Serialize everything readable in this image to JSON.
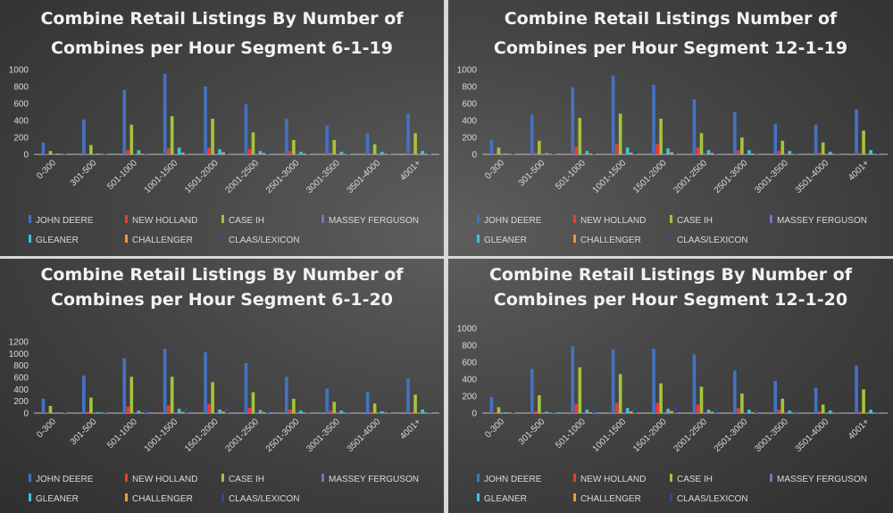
{
  "colors": {
    "JOHN DEERE": "#4472c4",
    "NEW HOLLAND": "#e83b3b",
    "CASE IH": "#a4c43a",
    "MASSEY FERGUSON": "#8e64c8",
    "GLEANER": "#3bc5db",
    "CHALLENGER": "#f39a2c",
    "CLAAS/LEXICON": "#2c4d80"
  },
  "chart_data": [
    {
      "type": "bar",
      "title_lines": [
        "Combine Retail Listings By Number of",
        "Combines per Hour Segment 6-1-19"
      ],
      "categories": [
        "0-300",
        "301-500",
        "501-1000",
        "1001-1500",
        "1501-2000",
        "2001-2500",
        "2501-3000",
        "3001-3500",
        "3501-4000",
        "4001+"
      ],
      "ylim": [
        0,
        1000
      ],
      "yticks": [
        0,
        200,
        400,
        600,
        800,
        1000
      ],
      "legend_position": "bottom",
      "series": [
        {
          "name": "JOHN DEERE",
          "values": [
            140,
            410,
            760,
            950,
            800,
            590,
            420,
            340,
            250,
            480
          ]
        },
        {
          "name": "NEW HOLLAND",
          "values": [
            5,
            10,
            50,
            70,
            80,
            65,
            40,
            20,
            10,
            10
          ]
        },
        {
          "name": "CASE IH",
          "values": [
            40,
            110,
            350,
            450,
            420,
            260,
            170,
            170,
            120,
            250
          ]
        },
        {
          "name": "MASSEY FERGUSON",
          "values": [
            2,
            3,
            5,
            10,
            10,
            8,
            5,
            4,
            3,
            2
          ]
        },
        {
          "name": "GLEANER",
          "values": [
            10,
            10,
            50,
            80,
            60,
            40,
            30,
            30,
            30,
            40
          ]
        },
        {
          "name": "CHALLENGER",
          "values": [
            2,
            3,
            8,
            20,
            25,
            15,
            10,
            5,
            3,
            3
          ]
        },
        {
          "name": "CLAAS/LEXICON",
          "values": [
            5,
            10,
            40,
            40,
            50,
            40,
            30,
            20,
            15,
            15
          ]
        }
      ]
    },
    {
      "type": "bar",
      "title_lines": [
        "Combine Retail Listings Number of",
        "Combines   per Hour Segment 12-1-19"
      ],
      "categories": [
        "0-300",
        "301-500",
        "501-1000",
        "1001-1500",
        "1501-2000",
        "2001-2500",
        "2501-3000",
        "3001-3500",
        "3501-4000",
        "4001+"
      ],
      "ylim": [
        0,
        1000
      ],
      "yticks": [
        0,
        200,
        400,
        600,
        800,
        1000
      ],
      "legend_position": "bottom",
      "series": [
        {
          "name": "JOHN DEERE",
          "values": [
            170,
            470,
            790,
            930,
            820,
            650,
            500,
            360,
            350,
            530
          ]
        },
        {
          "name": "NEW HOLLAND",
          "values": [
            10,
            20,
            90,
            120,
            120,
            80,
            50,
            40,
            20,
            15
          ]
        },
        {
          "name": "CASE IH",
          "values": [
            80,
            160,
            430,
            480,
            420,
            250,
            200,
            160,
            140,
            280
          ]
        },
        {
          "name": "MASSEY FERGUSON",
          "values": [
            2,
            3,
            5,
            10,
            10,
            8,
            5,
            4,
            3,
            2
          ]
        },
        {
          "name": "GLEANER",
          "values": [
            10,
            15,
            40,
            80,
            70,
            50,
            50,
            40,
            30,
            50
          ]
        },
        {
          "name": "CHALLENGER",
          "values": [
            2,
            3,
            10,
            20,
            25,
            15,
            10,
            5,
            3,
            3
          ]
        },
        {
          "name": "CLAAS/LEXICON",
          "values": [
            5,
            10,
            30,
            50,
            60,
            40,
            30,
            20,
            15,
            15
          ]
        }
      ]
    },
    {
      "type": "bar",
      "title_lines": [
        "Combine Retail Listings By Number of",
        "Combines per Hour Segment 6-1-20"
      ],
      "categories": [
        "0-300",
        "301-500",
        "501-1000",
        "1001-1500",
        "1501-2000",
        "2001-2500",
        "2501-3000",
        "3001-3500",
        "3501-4000",
        "4001+"
      ],
      "ylim": [
        0,
        1200
      ],
      "yticks": [
        0,
        200,
        400,
        600,
        800,
        1000,
        1200
      ],
      "legend_position": "bottom",
      "series": [
        {
          "name": "JOHN DEERE",
          "values": [
            240,
            630,
            920,
            1080,
            1020,
            840,
            610,
            410,
            360,
            580
          ]
        },
        {
          "name": "NEW HOLLAND",
          "values": [
            10,
            20,
            110,
            130,
            150,
            90,
            60,
            40,
            20,
            15
          ]
        },
        {
          "name": "CASE IH",
          "values": [
            120,
            260,
            610,
            610,
            520,
            350,
            240,
            190,
            160,
            310
          ]
        },
        {
          "name": "MASSEY FERGUSON",
          "values": [
            2,
            3,
            5,
            10,
            10,
            8,
            5,
            4,
            3,
            2
          ]
        },
        {
          "name": "GLEANER",
          "values": [
            10,
            15,
            40,
            70,
            60,
            50,
            40,
            40,
            30,
            60
          ]
        },
        {
          "name": "CHALLENGER",
          "values": [
            2,
            3,
            10,
            20,
            25,
            15,
            10,
            5,
            3,
            3
          ]
        },
        {
          "name": "CLAAS/LEXICON",
          "values": [
            10,
            20,
            60,
            80,
            100,
            50,
            30,
            20,
            15,
            15
          ]
        }
      ]
    },
    {
      "type": "bar",
      "title_lines": [
        "Combine Retail Listings By Number of",
        "Combines per Hour Segment 12-1-20"
      ],
      "categories": [
        "0-300",
        "301-500",
        "501-1000",
        "1001-1500",
        "1501-2000",
        "2001-2500",
        "2501-3000",
        "3001-3500",
        "3501-4000",
        "4001+"
      ],
      "ylim": [
        0,
        1000
      ],
      "yticks": [
        0,
        200,
        400,
        600,
        800,
        1000
      ],
      "legend_position": "bottom",
      "series": [
        {
          "name": "JOHN DEERE",
          "values": [
            190,
            520,
            790,
            750,
            760,
            690,
            500,
            380,
            300,
            560
          ]
        },
        {
          "name": "NEW HOLLAND",
          "values": [
            10,
            20,
            110,
            120,
            120,
            100,
            60,
            40,
            20,
            15
          ]
        },
        {
          "name": "CASE IH",
          "values": [
            70,
            210,
            540,
            460,
            350,
            310,
            230,
            170,
            100,
            280
          ]
        },
        {
          "name": "MASSEY FERGUSON",
          "values": [
            2,
            3,
            5,
            10,
            10,
            8,
            5,
            4,
            3,
            2
          ]
        },
        {
          "name": "GLEANER",
          "values": [
            10,
            15,
            40,
            60,
            50,
            40,
            40,
            30,
            30,
            40
          ]
        },
        {
          "name": "CHALLENGER",
          "values": [
            2,
            3,
            10,
            20,
            25,
            15,
            10,
            5,
            3,
            3
          ]
        },
        {
          "name": "CLAAS/LEXICON",
          "values": [
            10,
            20,
            60,
            70,
            80,
            60,
            40,
            30,
            15,
            15
          ]
        }
      ]
    }
  ]
}
